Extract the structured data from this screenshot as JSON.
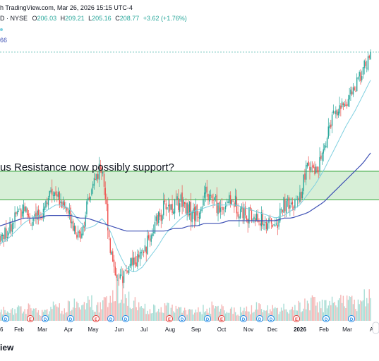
{
  "header": {
    "source_line": "h TradingView.com, Mar 26, 2026 15:15 UTC-4",
    "symbol_exchange": "D · NYSE",
    "o_label": "O",
    "o_value": "206.03",
    "h_label": "H",
    "h_value": "209.21",
    "l_label": "L",
    "l_value": "205.16",
    "c_label": "C",
    "c_value": "208.77",
    "change": "+3.62 (+1.76%)",
    "indicator_value": "66"
  },
  "annotation": "us Resistance now possibly support?",
  "footer": {
    "brand": "iew"
  },
  "colors": {
    "up": "#26a69a",
    "down": "#ef5350",
    "zone_fill": "#d7efd7",
    "zone_border": "#4caf50",
    "sma_fast": "#7fd0e0",
    "sma_slow": "#3f51b5",
    "vol_up": "#a8ddd5",
    "vol_down": "#f5b7b6",
    "earnings_badge": "#e53935",
    "div_badge": "#1e88e5",
    "axis_text": "#131722",
    "last_price_line": "#26a69a"
  },
  "chart_data": {
    "type": "candlestick",
    "x_labels": [
      "6",
      "Feb",
      "Mar",
      "Apr",
      "May",
      "Jun",
      "Jul",
      "Aug",
      "Sep",
      "Oct",
      "Nov",
      "Dec",
      "2026",
      "Feb",
      "Mar",
      "Apr"
    ],
    "last_close": 208.77,
    "price_trend": [
      138,
      140,
      146,
      150,
      143,
      146,
      153,
      156,
      150,
      146,
      137,
      148,
      160,
      165,
      133,
      120,
      125,
      128,
      130,
      138,
      144,
      150,
      149,
      153,
      148,
      146,
      154,
      152,
      148,
      152,
      150,
      147,
      145,
      144,
      143,
      142,
      150,
      149,
      152,
      165,
      162,
      170,
      182,
      187,
      190,
      195,
      202,
      207
    ],
    "sma_fast_trend": [
      135,
      137,
      140,
      143,
      145,
      146,
      148,
      150,
      150,
      148,
      144,
      141,
      142,
      145,
      140,
      132,
      126,
      124,
      126,
      130,
      134,
      139,
      142,
      145,
      147,
      148,
      149,
      150,
      150,
      150,
      150,
      149,
      148,
      147,
      146,
      145,
      146,
      148,
      150,
      154,
      158,
      163,
      169,
      175,
      181,
      186,
      192,
      198
    ],
    "sma_slow_trend": [
      142,
      143,
      144,
      145,
      145,
      145,
      146,
      146,
      146,
      146,
      145,
      145,
      144,
      143,
      142,
      141,
      140,
      140,
      140,
      140,
      140,
      140,
      141,
      141,
      142,
      142,
      143,
      143,
      143,
      144,
      144,
      144,
      144,
      144,
      144,
      144,
      145,
      145,
      146,
      147,
      149,
      151,
      154,
      157,
      160,
      163,
      166,
      170
    ],
    "zone": {
      "top": 163,
      "bottom": 152
    },
    "volume_trend": [
      3,
      4,
      3,
      5,
      4,
      3,
      4,
      5,
      4,
      6,
      5,
      7,
      6,
      5,
      9,
      12,
      8,
      6,
      5,
      4,
      4,
      5,
      4,
      4,
      3,
      4,
      4,
      5,
      4,
      4,
      3,
      4,
      4,
      5,
      4,
      4,
      5,
      4,
      5,
      7,
      6,
      5,
      6,
      8,
      7,
      6,
      8,
      10
    ],
    "earnings_markers": [
      "Feb",
      "May",
      "Aug",
      "Oct",
      "2026"
    ],
    "dividend_markers": [
      "Feb",
      "Mar",
      "Apr",
      "May",
      "Jun",
      "Aug",
      "Sep",
      "Oct",
      "Nov",
      "Dec",
      "2026",
      "Feb",
      "Mar"
    ],
    "grid": false,
    "legend": "top-left"
  }
}
